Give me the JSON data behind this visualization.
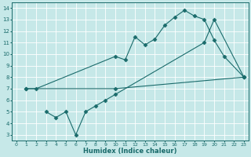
{
  "xlabel": "Humidex (Indice chaleur)",
  "bg_color": "#c6e8e8",
  "line_color": "#1a6b6b",
  "grid_color": "#b0d0d0",
  "xlim": [
    -0.5,
    23.5
  ],
  "ylim": [
    2.5,
    14.5
  ],
  "xticks": [
    0,
    1,
    2,
    3,
    4,
    5,
    6,
    7,
    8,
    9,
    10,
    11,
    12,
    13,
    14,
    15,
    16,
    17,
    18,
    19,
    20,
    21,
    22,
    23
  ],
  "yticks": [
    3,
    4,
    5,
    6,
    7,
    8,
    9,
    10,
    11,
    12,
    13,
    14
  ],
  "line1": {
    "x": [
      1,
      2,
      10,
      11,
      12,
      13,
      14,
      15,
      16,
      17,
      18,
      19,
      20,
      21,
      23
    ],
    "y": [
      7,
      7,
      9.8,
      9.5,
      11.5,
      10.8,
      11.3,
      12.5,
      13.2,
      13.8,
      13.3,
      13.0,
      11.2,
      9.8,
      8.0
    ]
  },
  "line2": {
    "x": [
      1,
      10,
      23
    ],
    "y": [
      7,
      7,
      8.0
    ]
  },
  "line3": {
    "x": [
      3,
      4,
      5,
      6,
      7,
      8,
      9,
      10,
      19,
      20,
      23
    ],
    "y": [
      5,
      4.5,
      5.0,
      3.0,
      5.0,
      5.5,
      6.0,
      6.5,
      11.0,
      13.0,
      8.0
    ]
  }
}
